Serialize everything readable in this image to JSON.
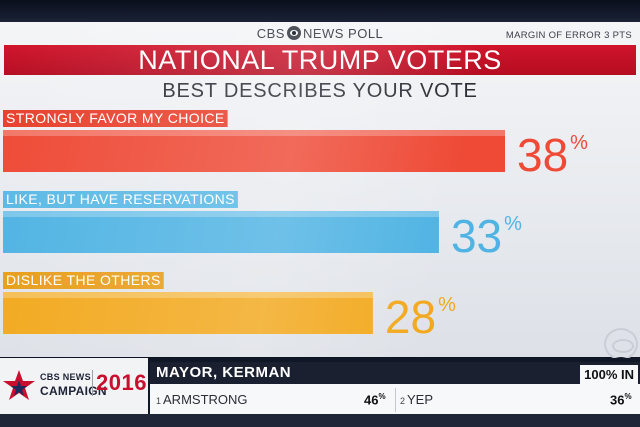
{
  "poll": {
    "network": "CBS",
    "network_suffix": "NEWS POLL",
    "margin_of_error": "MARGIN OF ERROR 3 PTS",
    "title": "NATIONAL TRUMP VOTERS",
    "subtitle": "BEST DESCRIBES YOUR VOTE"
  },
  "chart_data": {
    "type": "bar",
    "orientation": "horizontal",
    "categories": [
      "STRONGLY FAVOR MY CHOICE",
      "LIKE, BUT HAVE RESERVATIONS",
      "DISLIKE THE OTHERS"
    ],
    "values": [
      38,
      33,
      28
    ],
    "value_suffix": "%",
    "colors": [
      "#ee4a36",
      "#4fb3e3",
      "#f2a81c"
    ],
    "label_bg_colors": [
      "#e8402d",
      "#5ab9e5",
      "#e89d1a"
    ],
    "title": "NATIONAL TRUMP VOTERS",
    "subtitle": "BEST DESCRIBES YOUR VOTE",
    "xlim": [
      0,
      38
    ]
  },
  "ticker": {
    "logo_network": "CBS NEWS",
    "logo_campaign": "CAMPAIGN",
    "logo_year": "2016",
    "race": "MAYOR, KERMAN",
    "precincts_reporting": "100% IN",
    "candidates": [
      {
        "number": "1",
        "name": "ARMSTRONG",
        "pct": "46",
        "suffix": "%"
      },
      {
        "number": "2",
        "name": "YEP",
        "pct": "36",
        "suffix": "%"
      }
    ]
  }
}
